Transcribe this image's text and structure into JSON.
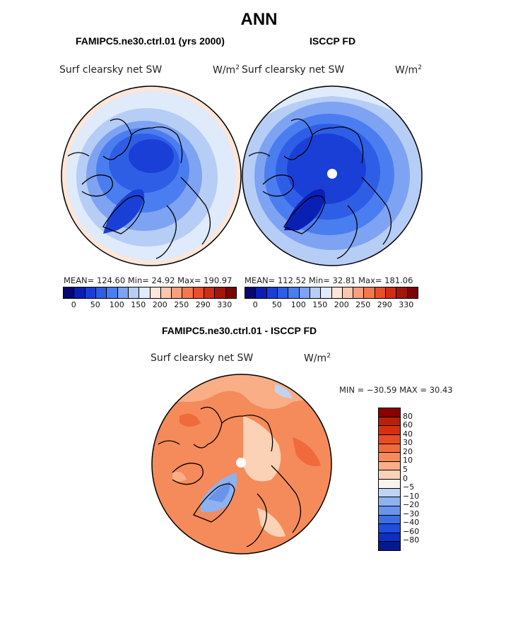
{
  "title": "ANN",
  "panels": {
    "left": {
      "case": "FAMIPC5.ne30.ctrl.01 (yrs 2000)",
      "variable": "Surf clearsky net SW",
      "units": "W/m",
      "units_sup": "2",
      "stats": "MEAN= 124.60   Min=  24.92   Max= 190.97"
    },
    "right": {
      "case": "ISCCP FD",
      "variable": "Surf clearsky net SW",
      "units": "W/m",
      "units_sup": "2",
      "stats": "MEAN= 112.52   Min=  32.81   Max= 181.06"
    },
    "diff": {
      "case": "FAMIPC5.ne30.ctrl.01 - ISCCP FD",
      "variable": "Surf clearsky net SW",
      "units": "W/m",
      "units_sup": "2",
      "stats": "MIN = −30.59  MAX =  30.43"
    }
  },
  "colorbar_main": {
    "colors": [
      "#08086e",
      "#0a1fb4",
      "#1a3fd6",
      "#2f5ee6",
      "#4a7ef0",
      "#7ea3f2",
      "#b6cdf6",
      "#dfeafb",
      "#fde6d8",
      "#fbc8ae",
      "#f8a07e",
      "#f3784f",
      "#ea4e2a",
      "#cf2d14",
      "#a3170a",
      "#7d0505"
    ],
    "ticks": [
      "0",
      "50",
      "100",
      "150",
      "200",
      "250",
      "290",
      "330"
    ]
  },
  "colorbar_diff": {
    "colors": [
      "#8b0000",
      "#b8200a",
      "#d6300f",
      "#ea4d24",
      "#f06a3b",
      "#f58b5a",
      "#f9ae86",
      "#fcd2b6",
      "#f7f4f0",
      "#bfd3f3",
      "#8db2ef",
      "#6a94ec",
      "#3d6ee6",
      "#1f4dde",
      "#0d2fc4",
      "#07198f"
    ],
    "ticks": [
      "80",
      "60",
      "40",
      "30",
      "20",
      "10",
      "5",
      "0",
      "−5",
      "−10",
      "−20",
      "−30",
      "−40",
      "−60",
      "−80"
    ]
  }
}
